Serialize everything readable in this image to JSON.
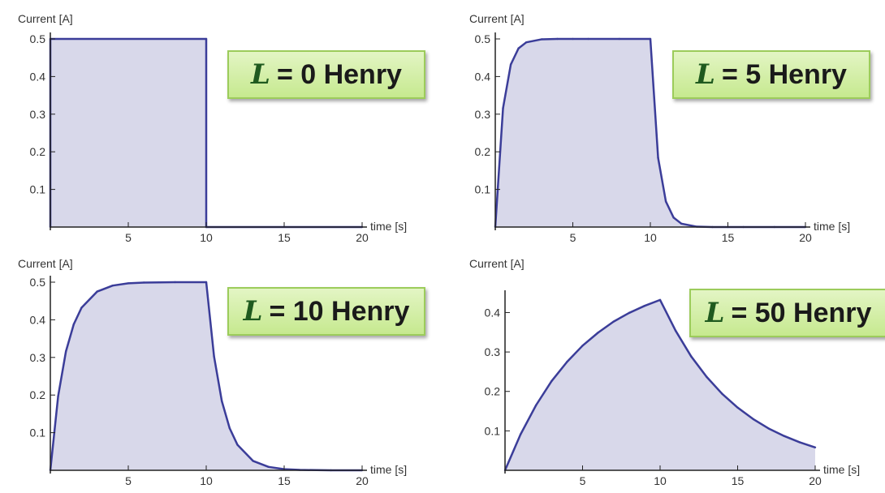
{
  "chart_data": [
    {
      "type": "area",
      "label_symbol": "L",
      "label_rest": "= 0 Henry",
      "ylabel": "Current [A]",
      "xlabel": "time [s]",
      "xlim": [
        0,
        20
      ],
      "ylim": [
        0,
        0.5
      ],
      "xticks": [
        5,
        10,
        15,
        20
      ],
      "yticks": [
        0.1,
        0.2,
        0.3,
        0.4,
        0.5
      ],
      "x": [
        0,
        0,
        10,
        10,
        20
      ],
      "y": [
        0,
        0.5,
        0.5,
        0,
        0
      ],
      "grid": false
    },
    {
      "type": "area",
      "label_symbol": "L",
      "label_rest": "= 5 Henry",
      "ylabel": "Current [A]",
      "xlabel": "time [s]",
      "xlim": [
        0,
        20
      ],
      "ylim": [
        0,
        0.5
      ],
      "xticks": [
        5,
        10,
        15,
        20
      ],
      "yticks": [
        0.1,
        0.2,
        0.3,
        0.4,
        0.5
      ],
      "x": [
        0,
        0.5,
        1,
        1.5,
        2,
        3,
        4,
        5,
        6,
        8,
        10,
        10.5,
        11,
        11.5,
        12,
        13,
        14,
        15,
        16,
        18,
        20
      ],
      "y": [
        0,
        0.316,
        0.432,
        0.475,
        0.491,
        0.499,
        0.5,
        0.5,
        0.5,
        0.5,
        0.5,
        0.184,
        0.068,
        0.025,
        0.009,
        0.001,
        0,
        0,
        0,
        0,
        0
      ],
      "grid": false
    },
    {
      "type": "area",
      "label_symbol": "L",
      "label_rest": "= 10 Henry",
      "ylabel": "Current [A]",
      "xlabel": "time [s]",
      "xlim": [
        0,
        20
      ],
      "ylim": [
        0,
        0.5
      ],
      "xticks": [
        5,
        10,
        15,
        20
      ],
      "yticks": [
        0.1,
        0.2,
        0.3,
        0.4,
        0.5
      ],
      "x": [
        0,
        0.5,
        1,
        1.5,
        2,
        3,
        4,
        5,
        6,
        8,
        10,
        10.5,
        11,
        11.5,
        12,
        13,
        14,
        15,
        16,
        18,
        20
      ],
      "y": [
        0,
        0.197,
        0.316,
        0.388,
        0.432,
        0.475,
        0.491,
        0.497,
        0.499,
        0.5,
        0.5,
        0.303,
        0.184,
        0.112,
        0.068,
        0.025,
        0.009,
        0.003,
        0.001,
        0,
        0
      ],
      "grid": false
    },
    {
      "type": "area",
      "label_symbol": "L",
      "label_rest": "= 50 Henry",
      "ylabel": "Current [A]",
      "xlabel": "time [s]",
      "xlim": [
        0,
        20
      ],
      "ylim": [
        0,
        0.44
      ],
      "xticks": [
        5,
        10,
        15,
        20
      ],
      "yticks": [
        0.1,
        0.2,
        0.3,
        0.4
      ],
      "x": [
        0,
        1,
        2,
        3,
        4,
        5,
        6,
        7,
        8,
        9,
        10,
        11,
        12,
        13,
        14,
        15,
        16,
        17,
        18,
        19,
        20
      ],
      "y": [
        0,
        0.091,
        0.165,
        0.226,
        0.275,
        0.316,
        0.349,
        0.377,
        0.399,
        0.417,
        0.432,
        0.354,
        0.289,
        0.237,
        0.194,
        0.159,
        0.13,
        0.106,
        0.087,
        0.071,
        0.058
      ],
      "grid": false
    }
  ],
  "colors": {
    "line": "#3b3d99",
    "fill": "#d8d8ea",
    "axis": "#222222"
  }
}
